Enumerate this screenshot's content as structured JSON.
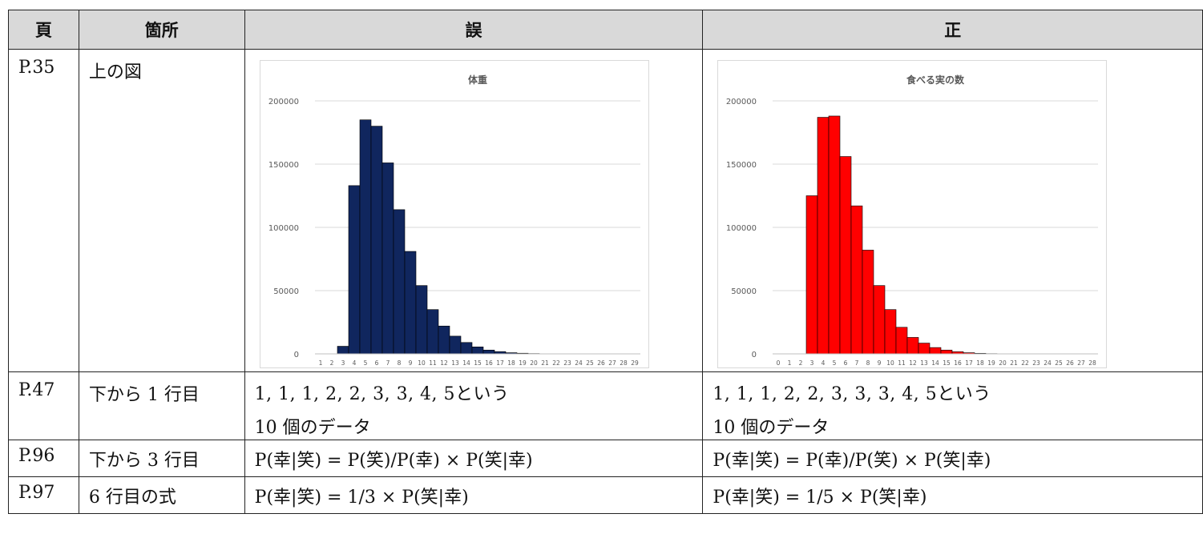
{
  "headers": [
    "頁",
    "箇所",
    "誤",
    "正"
  ],
  "rows": [
    {
      "page": "P.35",
      "location": "上の図"
    },
    {
      "page": "P.47",
      "location": "下から 1 行目",
      "wrong_line1": "1, 1, 1, 2, 2, 3, 3, 4, 5という",
      "wrong_line2": "10 個のデータ",
      "right_line1": "1, 1, 1, 2, 2, 3, 3, 3, 4, 5という",
      "right_line2": "10 個のデータ"
    },
    {
      "page": "P.96",
      "location": "下から 3 行目",
      "wrong": "P(幸|笑) = P(笑)/P(幸) × P(笑|幸)",
      "right": "P(幸|笑) = P(幸)/P(笑) × P(笑|幸)"
    },
    {
      "page": "P.97",
      "location": "6 行目の式",
      "wrong": "P(幸|笑) = 1/3 × P(笑|幸)",
      "right": "P(幸|笑) = 1/5 × P(笑|幸)"
    }
  ],
  "chart_data": [
    {
      "type": "bar",
      "title": "体重",
      "color": "#10265e",
      "ylim": [
        0,
        200000
      ],
      "yticks": [
        0,
        50000,
        100000,
        150000,
        200000
      ],
      "grid": true,
      "categories": [
        "1",
        "2",
        "3",
        "4",
        "5",
        "6",
        "7",
        "8",
        "9",
        "10",
        "11",
        "12",
        "13",
        "14",
        "15",
        "16",
        "17",
        "18",
        "19",
        "20",
        "21",
        "22",
        "23",
        "24",
        "25",
        "26",
        "27",
        "28",
        "29"
      ],
      "values": [
        0,
        0,
        6000,
        133000,
        185000,
        180000,
        151000,
        114000,
        81000,
        54000,
        35000,
        22000,
        14000,
        9000,
        5500,
        3000,
        1800,
        900,
        500,
        250,
        100,
        50,
        20,
        10,
        5,
        0,
        0,
        0,
        0
      ]
    },
    {
      "type": "bar",
      "title": "食べる実の数",
      "color": "#ff0000",
      "ylim": [
        0,
        200000
      ],
      "yticks": [
        0,
        50000,
        100000,
        150000,
        200000
      ],
      "grid": true,
      "categories": [
        "0",
        "1",
        "2",
        "3",
        "4",
        "5",
        "6",
        "7",
        "8",
        "9",
        "10",
        "11",
        "12",
        "13",
        "14",
        "15",
        "16",
        "17",
        "18",
        "19",
        "20",
        "21",
        "22",
        "23",
        "24",
        "25",
        "26",
        "27",
        "28"
      ],
      "values": [
        0,
        0,
        0,
        125000,
        187000,
        188000,
        156000,
        117000,
        82000,
        54000,
        35000,
        21000,
        13000,
        8500,
        5000,
        3000,
        1700,
        900,
        450,
        200,
        100,
        50,
        20,
        10,
        5,
        0,
        0,
        0,
        0
      ]
    }
  ]
}
